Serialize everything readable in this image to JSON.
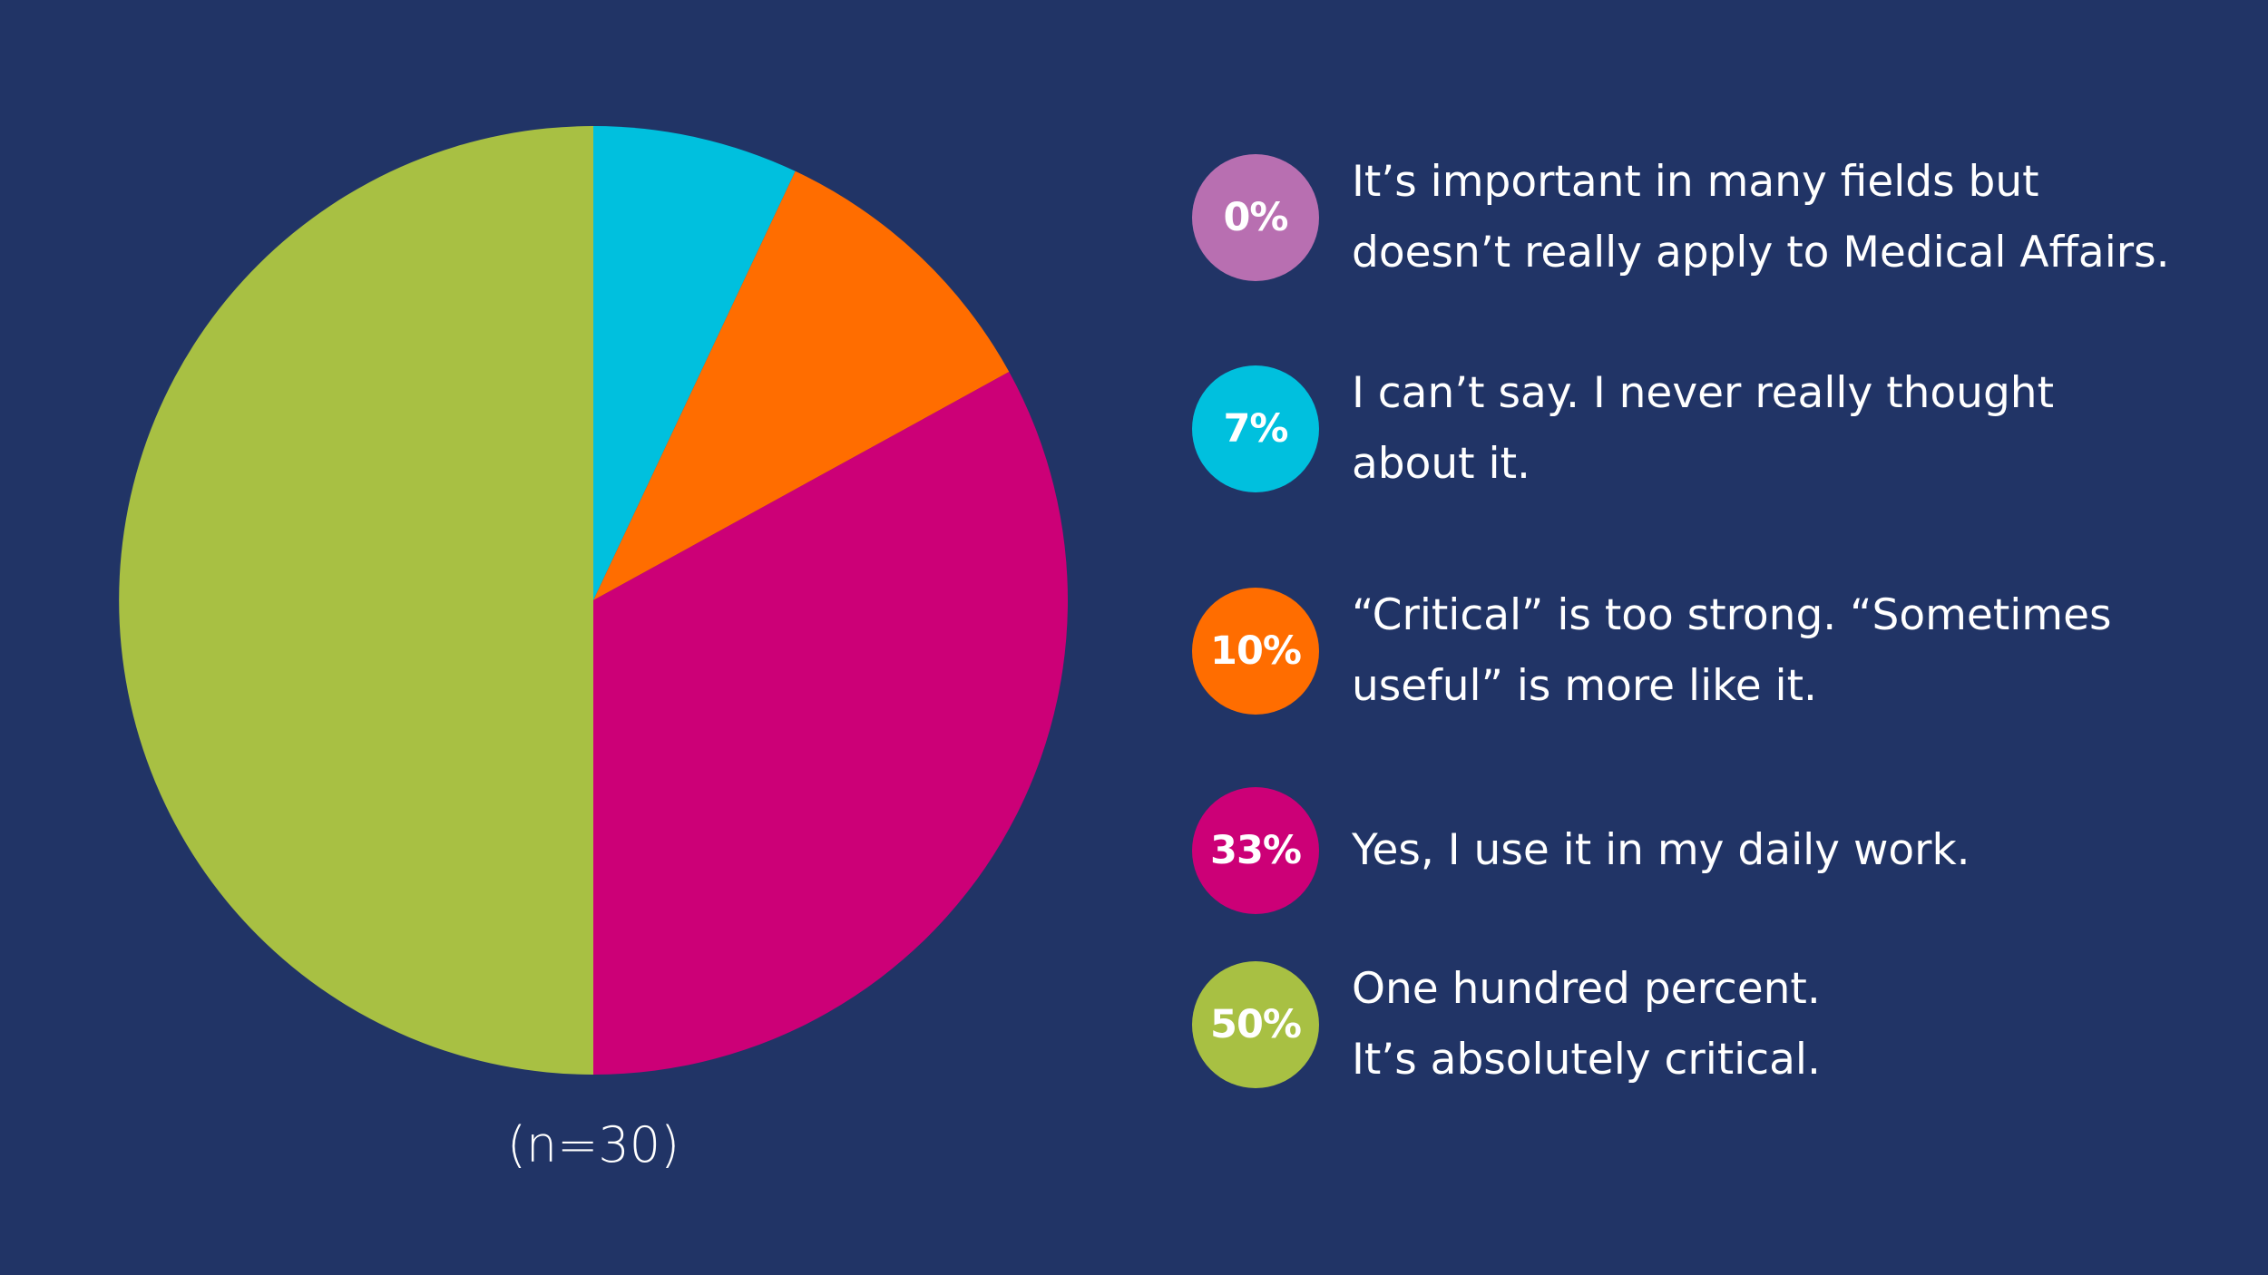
{
  "colors": {
    "background": "#213466",
    "slice_0": "#b86fb1",
    "slice_1": "#00c0de",
    "slice_2": "#ff6d00",
    "slice_3": "#cc0077",
    "slice_4": "#a8c043",
    "text": "#ffffff"
  },
  "sample_note": "(n=30)",
  "legend": [
    {
      "badge": "0%",
      "text": "It’s important in many fields but\ndoesn’t really apply to Medical Affairs.",
      "color": "#b86fb1"
    },
    {
      "badge": "7%",
      "text": "I can’t say. I never really thought\nabout it.",
      "color": "#00c0de"
    },
    {
      "badge": "10%",
      "text": "“Critical” is too strong. “Sometimes\nuseful” is more like it.",
      "color": "#ff6d00"
    },
    {
      "badge": "33%",
      "text": "Yes, I use it in my daily work.",
      "color": "#cc0077"
    },
    {
      "badge": "50%",
      "text": "One hundred percent.\nIt’s absolutely critical.",
      "color": "#a8c043"
    }
  ],
  "chart_data": {
    "type": "pie",
    "title": "",
    "categories": [
      "It’s important in many fields but doesn’t really apply to Medical Affairs.",
      "I can’t say. I never really thought about it.",
      "“Critical” is too strong. “Sometimes useful” is more like it.",
      "Yes, I use it in my daily work.",
      "One hundred percent. It’s absolutely critical."
    ],
    "values": [
      0,
      7,
      10,
      33,
      50
    ],
    "colors": [
      "#b86fb1",
      "#00c0de",
      "#ff6d00",
      "#cc0077",
      "#a8c043"
    ],
    "start_angle": "12 o'clock",
    "direction": "clockwise",
    "legend_position": "right"
  }
}
